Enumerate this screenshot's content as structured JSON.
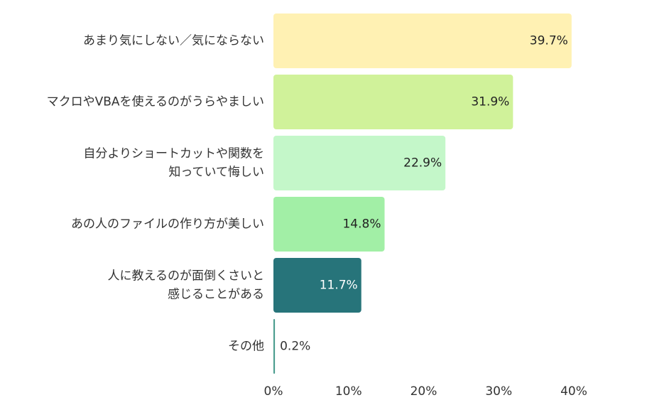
{
  "chart_data": {
    "type": "bar",
    "orientation": "horizontal",
    "categories": [
      [
        "あまり気にしない／気にならない"
      ],
      [
        "マクロやVBAを使えるのがうらやましい"
      ],
      [
        "自分よりショートカットや関数を",
        "知っていて悔しい"
      ],
      [
        "あの人のファイルの作り方が美しい"
      ],
      [
        "人に教えるのが面倒くさいと",
        "感じることがある"
      ],
      [
        "その他"
      ]
    ],
    "values": [
      39.7,
      31.9,
      22.9,
      14.8,
      11.7,
      0.2
    ],
    "value_labels": [
      "39.7%",
      "31.9%",
      "22.9%",
      "14.8%",
      "11.7%",
      "0.2%"
    ],
    "colors": [
      "#fff1b3",
      "#d0f29a",
      "#c4f7c9",
      "#a2efa6",
      "#27747a",
      "#4a9c8e"
    ],
    "value_label_colors": [
      "#222222",
      "#222222",
      "#222222",
      "#222222",
      "#ffffff",
      "#333333"
    ],
    "xlim": [
      0,
      40
    ],
    "ticks": [
      0,
      10,
      20,
      30,
      40
    ],
    "tick_labels": [
      "0%",
      "10%",
      "20%",
      "30%",
      "40%"
    ],
    "grid": false,
    "legend": "none"
  }
}
